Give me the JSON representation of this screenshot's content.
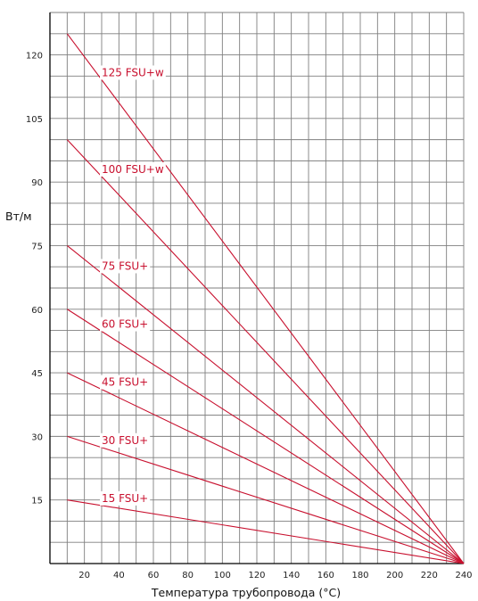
{
  "chart_data": {
    "type": "line",
    "xlabel": "Температура трубопровода (°С)",
    "ylabel": "Вт/м",
    "xlim": [
      0,
      240
    ],
    "ylim": [
      0,
      130
    ],
    "x_ticks": [
      20,
      40,
      60,
      80,
      100,
      120,
      140,
      160,
      180,
      200,
      220,
      240
    ],
    "y_ticks": [
      15,
      30,
      45,
      60,
      75,
      90,
      105,
      120
    ],
    "grid": true,
    "line_color": "#c8102e",
    "series": [
      {
        "name": "125 FSU+w",
        "x": [
          10,
          240
        ],
        "y": [
          125,
          0
        ]
      },
      {
        "name": "100 FSU+w",
        "x": [
          10,
          240
        ],
        "y": [
          100,
          0
        ]
      },
      {
        "name": "75 FSU+",
        "x": [
          10,
          240
        ],
        "y": [
          75,
          0
        ]
      },
      {
        "name": "60 FSU+",
        "x": [
          10,
          240
        ],
        "y": [
          60,
          0
        ]
      },
      {
        "name": "45 FSU+",
        "x": [
          10,
          240
        ],
        "y": [
          45,
          0
        ]
      },
      {
        "name": "30 FSU+",
        "x": [
          10,
          240
        ],
        "y": [
          30,
          0
        ]
      },
      {
        "name": "15 FSU+",
        "x": [
          10,
          240
        ],
        "y": [
          15,
          0
        ]
      }
    ]
  }
}
